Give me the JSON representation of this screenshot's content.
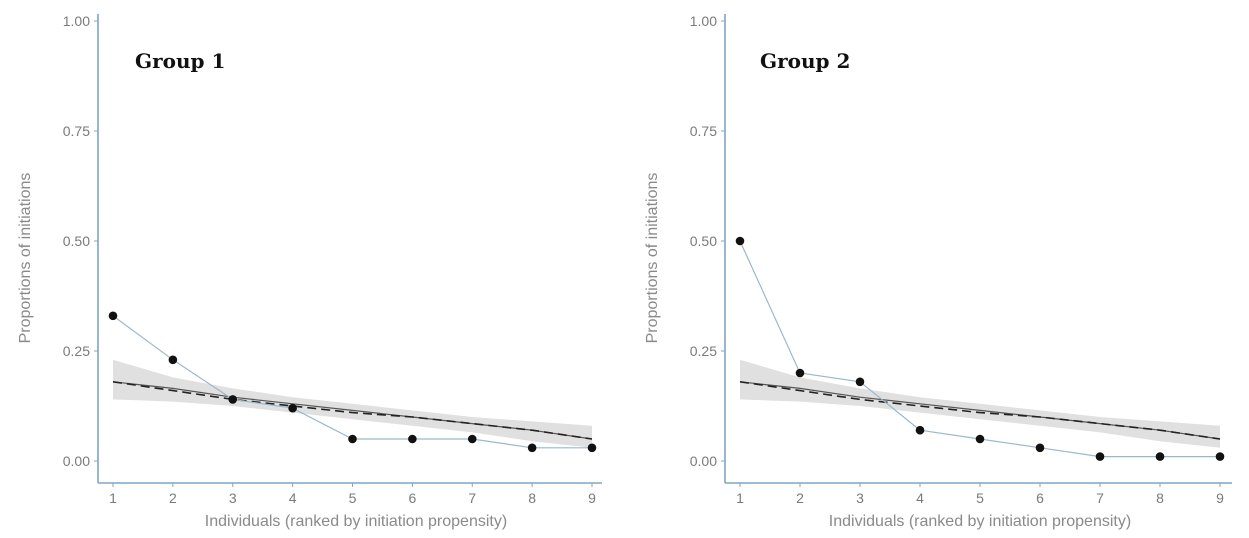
{
  "chart_data": [
    {
      "type": "line",
      "title": "Group 1",
      "xlabel": "Individuals (ranked by initiation propensity)",
      "ylabel": "Proportions of initiations",
      "x": [
        1,
        2,
        3,
        4,
        5,
        6,
        7,
        8,
        9
      ],
      "x_tick_labels": [
        "1",
        "2",
        "3",
        "4",
        "5",
        "6",
        "7",
        "8",
        "9"
      ],
      "y_tick_labels": [
        "0.00",
        "0.25",
        "0.50",
        "0.75",
        "1.00"
      ],
      "xlim": [
        1,
        9
      ],
      "ylim": [
        0,
        1
      ],
      "grid": false,
      "series": [
        {
          "kind": "observed",
          "values": [
            0.33,
            0.23,
            0.14,
            0.12,
            0.05,
            0.05,
            0.05,
            0.03,
            0.03
          ]
        },
        {
          "kind": "expected-dashed",
          "values": [
            0.18,
            0.16,
            0.14,
            0.125,
            0.11,
            0.1,
            0.085,
            0.07,
            0.05
          ]
        },
        {
          "kind": "expected-solid",
          "values": [
            0.18,
            0.165,
            0.145,
            0.13,
            0.115,
            0.1,
            0.085,
            0.07,
            0.05
          ]
        },
        {
          "kind": "band-upper",
          "values": [
            0.23,
            0.19,
            0.165,
            0.145,
            0.13,
            0.115,
            0.1,
            0.09,
            0.08
          ]
        },
        {
          "kind": "band-lower",
          "values": [
            0.14,
            0.135,
            0.125,
            0.11,
            0.095,
            0.08,
            0.065,
            0.045,
            0.03
          ]
        }
      ]
    },
    {
      "type": "line",
      "title": "Group 2",
      "xlabel": "Individuals (ranked by initiation propensity)",
      "ylabel": "Proportions of initiations",
      "x": [
        1,
        2,
        3,
        4,
        5,
        6,
        7,
        8,
        9
      ],
      "x_tick_labels": [
        "1",
        "2",
        "3",
        "4",
        "5",
        "6",
        "7",
        "8",
        "9"
      ],
      "y_tick_labels": [
        "0.00",
        "0.25",
        "0.50",
        "0.75",
        "1.00"
      ],
      "xlim": [
        1,
        9
      ],
      "ylim": [
        0,
        1
      ],
      "grid": false,
      "series": [
        {
          "kind": "observed",
          "values": [
            0.5,
            0.2,
            0.18,
            0.07,
            0.05,
            0.03,
            0.01,
            0.01,
            0.01
          ]
        },
        {
          "kind": "expected-dashed",
          "values": [
            0.18,
            0.16,
            0.14,
            0.125,
            0.11,
            0.1,
            0.085,
            0.07,
            0.05
          ]
        },
        {
          "kind": "expected-solid",
          "values": [
            0.18,
            0.165,
            0.145,
            0.13,
            0.115,
            0.1,
            0.085,
            0.07,
            0.05
          ]
        },
        {
          "kind": "band-upper",
          "values": [
            0.23,
            0.19,
            0.165,
            0.145,
            0.13,
            0.115,
            0.1,
            0.09,
            0.08
          ]
        },
        {
          "kind": "band-lower",
          "values": [
            0.14,
            0.135,
            0.125,
            0.11,
            0.095,
            0.08,
            0.065,
            0.045,
            0.03
          ]
        }
      ]
    }
  ]
}
